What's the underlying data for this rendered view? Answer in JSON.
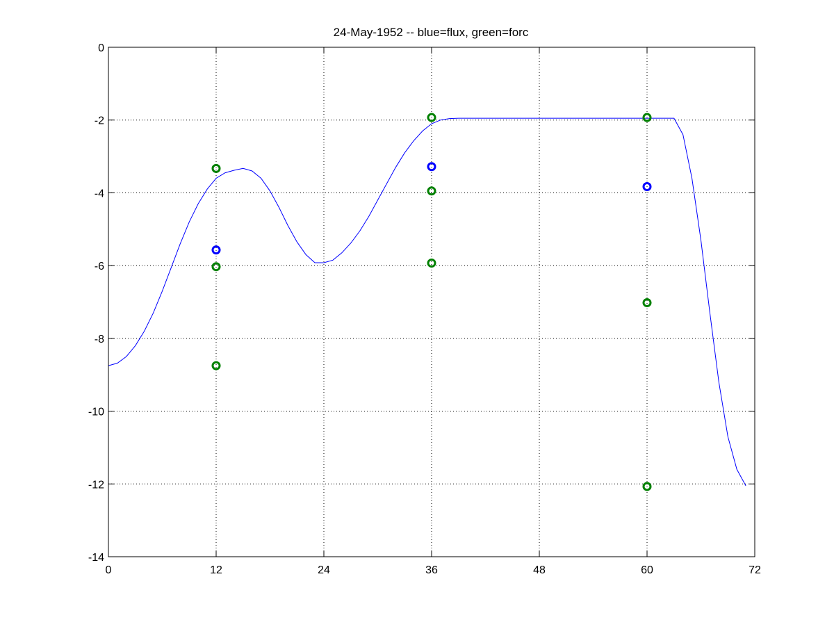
{
  "chart_data": {
    "type": "line",
    "title": "24-May-1952 -- blue=flux, green=forc",
    "xlabel": "",
    "ylabel": "",
    "xlim": [
      0,
      72
    ],
    "ylim": [
      -14,
      0
    ],
    "xticks": [
      0,
      12,
      24,
      36,
      48,
      60,
      72
    ],
    "yticks": [
      0,
      -2,
      -4,
      -6,
      -8,
      -10,
      -12,
      -14
    ],
    "xtick_labels": [
      "0",
      "12",
      "24",
      "36",
      "48",
      "60",
      "72"
    ],
    "ytick_labels": [
      "0",
      "-2",
      "-4",
      "-6",
      "-8",
      "-10",
      "-12",
      "-14"
    ],
    "grid": true,
    "series": [
      {
        "kind": "line",
        "color": "#0000ff",
        "x": [
          0,
          1,
          2,
          3,
          4,
          5,
          6,
          7,
          8,
          9,
          10,
          11,
          12,
          13,
          14,
          15,
          16,
          17,
          18,
          19,
          20,
          21,
          22,
          23,
          24,
          25,
          26,
          27,
          28,
          29,
          30,
          31,
          32,
          33,
          34,
          35,
          36,
          37,
          38,
          39,
          42,
          48,
          54,
          60,
          63,
          64,
          65,
          66,
          67,
          68,
          69,
          70,
          71
        ],
        "y": [
          -8.75,
          -8.68,
          -8.5,
          -8.2,
          -7.8,
          -7.3,
          -6.7,
          -6.05,
          -5.4,
          -4.8,
          -4.3,
          -3.9,
          -3.6,
          -3.45,
          -3.38,
          -3.33,
          -3.4,
          -3.6,
          -3.95,
          -4.4,
          -4.9,
          -5.35,
          -5.7,
          -5.92,
          -5.92,
          -5.85,
          -5.65,
          -5.38,
          -5.05,
          -4.65,
          -4.2,
          -3.75,
          -3.3,
          -2.9,
          -2.57,
          -2.3,
          -2.1,
          -2.0,
          -1.96,
          -1.95,
          -1.95,
          -1.95,
          -1.95,
          -1.95,
          -1.95,
          -2.4,
          -3.6,
          -5.3,
          -7.3,
          -9.2,
          -10.7,
          -11.6,
          -12.05
        ]
      },
      {
        "kind": "scatter",
        "color": "#0000ff",
        "x": [
          12,
          36,
          60
        ],
        "y": [
          -5.57,
          -3.28,
          -3.83
        ]
      },
      {
        "kind": "scatter",
        "color": "#008000",
        "x": [
          12,
          12,
          12,
          36,
          36,
          36,
          60,
          60,
          60
        ],
        "y": [
          -3.33,
          -6.03,
          -8.75,
          -1.93,
          -3.95,
          -5.93,
          -1.93,
          -7.02,
          -12.07
        ]
      }
    ]
  }
}
